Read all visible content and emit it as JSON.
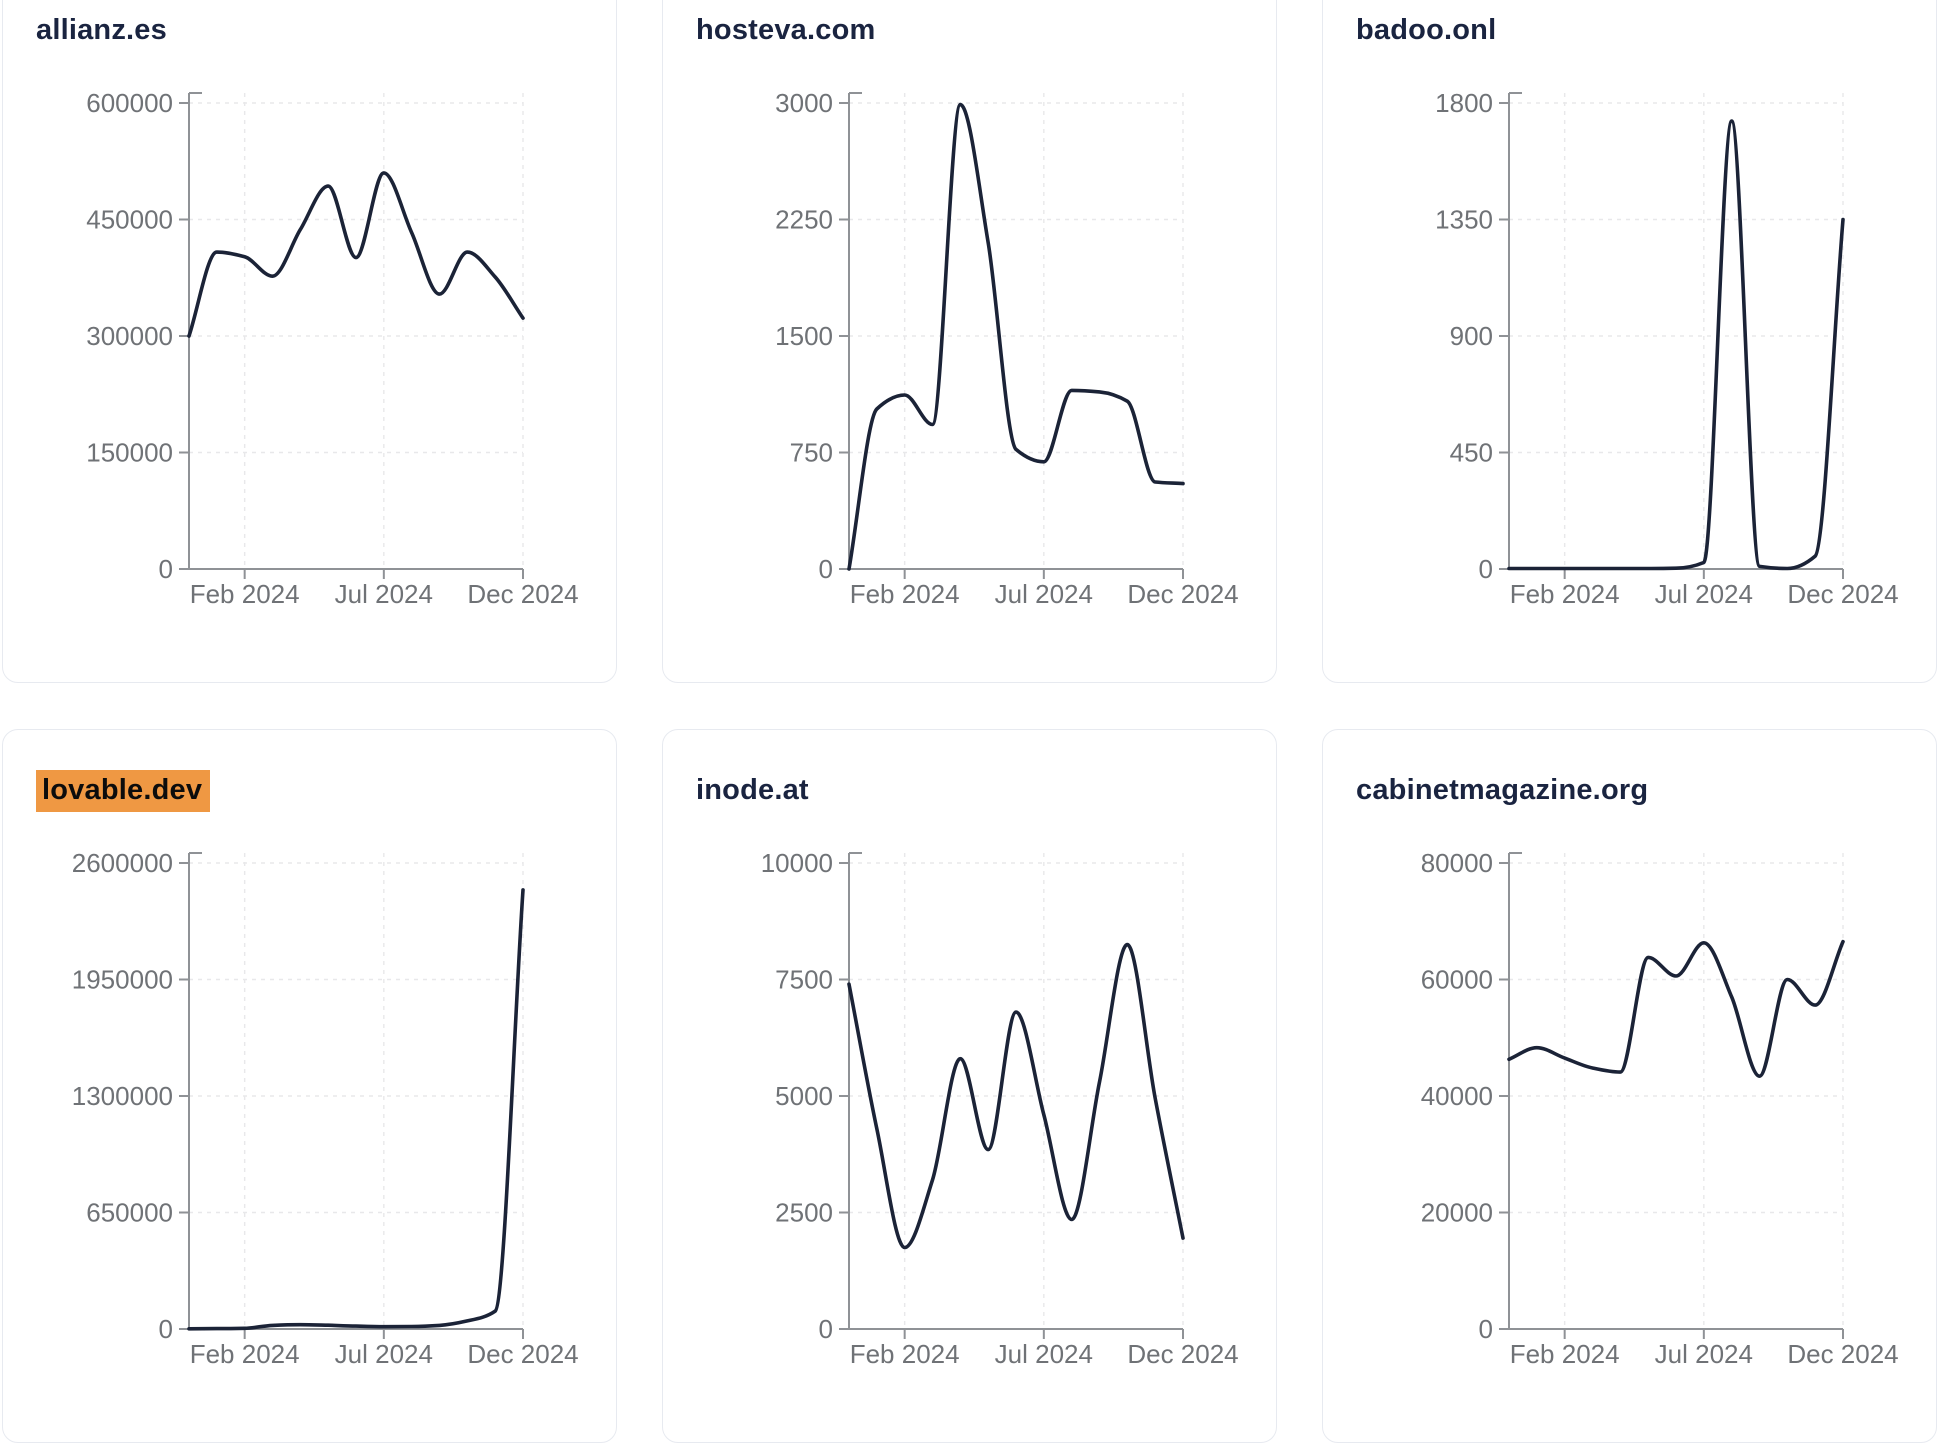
{
  "cards": [
    {
      "title": "allianz.es",
      "highlighted": false
    },
    {
      "title": "hosteva.com",
      "highlighted": false
    },
    {
      "title": "badoo.onl",
      "highlighted": false
    },
    {
      "title": "lovable.dev",
      "highlighted": true
    },
    {
      "title": "inode.at",
      "highlighted": false
    },
    {
      "title": "cabinetmagazine.org",
      "highlighted": false
    }
  ],
  "chart_data": [
    {
      "type": "line",
      "title": "allianz.es",
      "x": [
        "Dec 2023",
        "Jan 2024",
        "Feb 2024",
        "Mar 2024",
        "Apr 2024",
        "May 2024",
        "Jun 2024",
        "Jul 2024",
        "Aug 2024",
        "Sep 2024",
        "Oct 2024",
        "Nov 2024",
        "Dec 2024"
      ],
      "values": [
        300000,
        408000,
        402000,
        377000,
        437000,
        493000,
        401000,
        510000,
        433000,
        354000,
        408000,
        376000,
        323000
      ],
      "ylim": [
        0,
        600000
      ],
      "y_tick_labels": [
        "600000",
        "450000",
        "300000",
        "150000",
        "0"
      ],
      "x_tick_labels": [
        "Feb 2024",
        "Jul 2024",
        "Dec 2024"
      ],
      "x_tick_indices": [
        2,
        7,
        12
      ],
      "grid": "dashed",
      "legend": "none"
    },
    {
      "type": "line",
      "title": "hosteva.com",
      "x": [
        "Dec 2023",
        "Jan 2024",
        "Feb 2024",
        "Mar 2024",
        "Apr 2024",
        "May 2024",
        "Jun 2024",
        "Jul 2024",
        "Aug 2024",
        "Sep 2024",
        "Oct 2024",
        "Nov 2024",
        "Dec 2024"
      ],
      "values": [
        0,
        1030,
        1120,
        930,
        2990,
        2100,
        770,
        690,
        1150,
        1140,
        1080,
        560,
        550
      ],
      "ylim": [
        0,
        3000
      ],
      "y_tick_labels": [
        "3000",
        "2250",
        "1500",
        "750",
        "0"
      ],
      "x_tick_labels": [
        "Feb 2024",
        "Jul 2024",
        "Dec 2024"
      ],
      "x_tick_indices": [
        2,
        7,
        12
      ],
      "grid": "dashed",
      "legend": "none"
    },
    {
      "type": "line",
      "title": "badoo.onl",
      "x": [
        "Dec 2023",
        "Jan 2024",
        "Feb 2024",
        "Mar 2024",
        "Apr 2024",
        "May 2024",
        "Jun 2024",
        "Jul 2024",
        "Aug 2024",
        "Sep 2024",
        "Oct 2024",
        "Nov 2024",
        "Dec 2024"
      ],
      "values": [
        2,
        2,
        2,
        2,
        2,
        2,
        3,
        25,
        1730,
        10,
        2,
        50,
        1350
      ],
      "ylim": [
        0,
        1800
      ],
      "y_tick_labels": [
        "1800",
        "1350",
        "900",
        "450",
        "0"
      ],
      "x_tick_labels": [
        "Feb 2024",
        "Jul 2024",
        "Dec 2024"
      ],
      "x_tick_indices": [
        2,
        7,
        12
      ],
      "grid": "dashed",
      "legend": "none"
    },
    {
      "type": "line",
      "title": "lovable.dev",
      "x": [
        "Dec 2023",
        "Jan 2024",
        "Feb 2024",
        "Mar 2024",
        "Apr 2024",
        "May 2024",
        "Jun 2024",
        "Jul 2024",
        "Aug 2024",
        "Sep 2024",
        "Oct 2024",
        "Nov 2024",
        "Dec 2024"
      ],
      "values": [
        1000,
        2000,
        4000,
        20000,
        24000,
        21000,
        16000,
        13000,
        14000,
        20000,
        45000,
        100000,
        2450000
      ],
      "ylim": [
        0,
        2600000
      ],
      "y_tick_labels": [
        "2600000",
        "1950000",
        "1300000",
        "650000",
        "0"
      ],
      "x_tick_labels": [
        "Feb 2024",
        "Jul 2024",
        "Dec 2024"
      ],
      "x_tick_indices": [
        2,
        7,
        12
      ],
      "grid": "dashed",
      "legend": "none"
    },
    {
      "type": "line",
      "title": "inode.at",
      "x": [
        "Dec 2023",
        "Jan 2024",
        "Feb 2024",
        "Mar 2024",
        "Apr 2024",
        "May 2024",
        "Jun 2024",
        "Jul 2024",
        "Aug 2024",
        "Sep 2024",
        "Oct 2024",
        "Nov 2024",
        "Dec 2024"
      ],
      "values": [
        7400,
        4300,
        1750,
        3200,
        5800,
        3850,
        6800,
        4600,
        2350,
        5300,
        8250,
        4950,
        1950
      ],
      "ylim": [
        0,
        10000
      ],
      "y_tick_labels": [
        "10000",
        "7500",
        "5000",
        "2500",
        "0"
      ],
      "x_tick_labels": [
        "Feb 2024",
        "Jul 2024",
        "Dec 2024"
      ],
      "x_tick_indices": [
        2,
        7,
        12
      ],
      "grid": "dashed",
      "legend": "none"
    },
    {
      "type": "line",
      "title": "cabinetmagazine.org",
      "x": [
        "Dec 2023",
        "Jan 2024",
        "Feb 2024",
        "Mar 2024",
        "Apr 2024",
        "May 2024",
        "Jun 2024",
        "Jul 2024",
        "Aug 2024",
        "Sep 2024",
        "Oct 2024",
        "Nov 2024",
        "Dec 2024"
      ],
      "values": [
        46300,
        48300,
        46500,
        44800,
        44100,
        63800,
        60600,
        66300,
        57000,
        43400,
        60000,
        55600,
        66500
      ],
      "ylim": [
        0,
        80000
      ],
      "y_tick_labels": [
        "80000",
        "60000",
        "40000",
        "20000",
        "0"
      ],
      "x_tick_labels": [
        "Feb 2024",
        "Jul 2024",
        "Dec 2024"
      ],
      "x_tick_indices": [
        2,
        7,
        12
      ],
      "grid": "dashed",
      "legend": "none"
    }
  ],
  "colors": {
    "line": "#1b2337",
    "title": "#1a2440",
    "tick_label": "#6f7276",
    "axis": "#8f9296",
    "gridline": "#e8e8ea",
    "highlight": "#ef9843",
    "card_border": "#e7eaf0",
    "background": "#ffffff"
  }
}
